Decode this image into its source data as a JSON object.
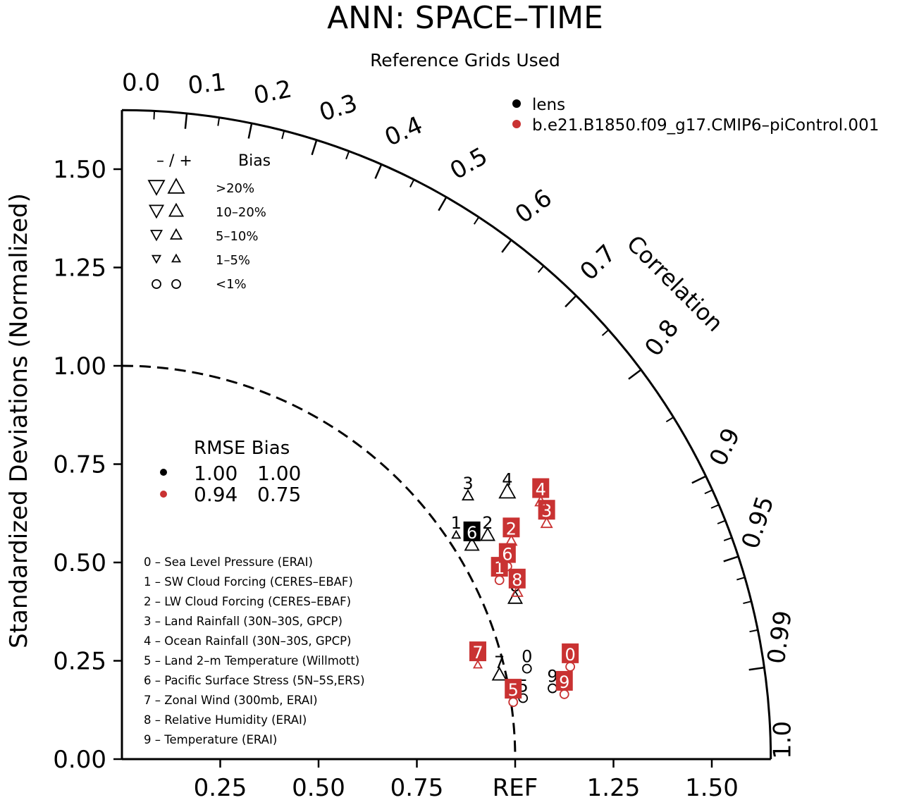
{
  "chart_data": {
    "type": "scatter",
    "subtype": "taylor-diagram",
    "title": "ANN: SPACE–TIME",
    "subtitle": "Reference Grids Used",
    "ylabel": "Standardized Deviations (Normalized)",
    "arc_label": "Correlation",
    "ref_label": "REF",
    "x_tick_labels": [
      "0.25",
      "0.50",
      "0.75",
      "REF",
      "1.25",
      "1.50"
    ],
    "x_tick_values": [
      0.25,
      0.5,
      0.75,
      1.0,
      1.25,
      1.5
    ],
    "y_tick_labels": [
      "0.00",
      "0.25",
      "0.50",
      "0.75",
      "1.00",
      "1.25",
      "1.50"
    ],
    "y_tick_values": [
      0,
      0.25,
      0.5,
      0.75,
      1.0,
      1.25,
      1.5
    ],
    "radius_max": 1.65,
    "correlation_labels": [
      {
        "value": 0.0,
        "text": "0.0"
      },
      {
        "value": 0.1,
        "text": "0.1"
      },
      {
        "value": 0.2,
        "text": "0.2"
      },
      {
        "value": 0.3,
        "text": "0.3"
      },
      {
        "value": 0.4,
        "text": "0.4"
      },
      {
        "value": 0.5,
        "text": "0.5"
      },
      {
        "value": 0.6,
        "text": "0.6"
      },
      {
        "value": 0.7,
        "text": "0.7"
      },
      {
        "value": 0.8,
        "text": "0.8"
      },
      {
        "value": 0.9,
        "text": "0.9"
      },
      {
        "value": 0.95,
        "text": "0.95"
      },
      {
        "value": 0.99,
        "text": "0.99"
      },
      {
        "value": 1.0,
        "text": "1.0"
      }
    ],
    "correlation_minor_ticks": [
      0.05,
      0.15,
      0.25,
      0.35,
      0.45,
      0.55,
      0.65,
      0.75,
      0.85,
      0.91,
      0.92,
      0.93,
      0.94,
      0.96,
      0.97,
      0.98
    ],
    "legend": [
      {
        "name": "lens",
        "color": "#000000"
      },
      {
        "name": "b.e21.B1850.f09_g17.CMIP6–piControl.001",
        "color": "#c93232"
      }
    ],
    "bias_key": {
      "header_sign": "– / +",
      "header_label": "Bias",
      "rows": [
        ">20%",
        "10–20%",
        "5–10%",
        "1–5%",
        "<1%"
      ]
    },
    "summary": {
      "header": "RMSE Bias",
      "rows": [
        {
          "color": "#000000",
          "rmse": "1.00",
          "bias": "1.00"
        },
        {
          "color": "#c93232",
          "rmse": "0.94",
          "bias": "0.75"
        }
      ]
    },
    "variables": [
      "0 – Sea Level Pressure (ERAI)",
      "1 – SW Cloud Forcing (CERES–EBAF)",
      "2 – LW Cloud Forcing (CERES–EBAF)",
      "3 – Land Rainfall (30N–30S, GPCP)",
      "4 – Ocean Rainfall (30N–30S, GPCP)",
      "5 – Land 2–m Temperature (Willmott)",
      "6 – Pacific Surface Stress (5N–5S,ERS)",
      "7 – Zonal Wind (300mb, ERAI)",
      "8 – Relative Humidity (ERAI)",
      "9 – Temperature (ERAI)"
    ],
    "series": [
      {
        "name": "lens",
        "color": "#000000",
        "points": [
          {
            "id": "0",
            "x": 1.03,
            "y": 0.23,
            "marker": "circle",
            "size": 1,
            "label_style": "plain"
          },
          {
            "id": "1",
            "x": 0.85,
            "y": 0.57,
            "marker": "tri-up",
            "size": 1,
            "label_style": "plain"
          },
          {
            "id": "2",
            "x": 0.93,
            "y": 0.57,
            "marker": "tri-up",
            "size": 3,
            "label_style": "plain"
          },
          {
            "id": "3",
            "x": 0.88,
            "y": 0.67,
            "marker": "tri-up",
            "size": 2,
            "label_style": "plain"
          },
          {
            "id": "4",
            "x": 0.98,
            "y": 0.68,
            "marker": "tri-up",
            "size": 4,
            "label_style": "plain"
          },
          {
            "id": "5",
            "x": 1.02,
            "y": 0.155,
            "marker": "circle",
            "size": 1,
            "label_style": "plain"
          },
          {
            "id": "6",
            "x": 0.89,
            "y": 0.545,
            "marker": "tri-up",
            "size": 3,
            "label_style": "boxed"
          },
          {
            "id": "7",
            "x": 0.96,
            "y": 0.215,
            "marker": "tri-up",
            "size": 3,
            "label_style": "plain"
          },
          {
            "id": "8",
            "x": 1.0,
            "y": 0.41,
            "marker": "tri-up",
            "size": 3,
            "label_style": "plain"
          },
          {
            "id": "9",
            "x": 1.095,
            "y": 0.18,
            "marker": "circle",
            "size": 1,
            "label_style": "plain"
          }
        ]
      },
      {
        "name": "b.e21.B1850.f09_g17.CMIP6–piControl.001",
        "color": "#c93232",
        "points": [
          {
            "id": "0",
            "x": 1.14,
            "y": 0.235,
            "marker": "circle",
            "size": 1,
            "label_style": "boxed"
          },
          {
            "id": "1",
            "x": 0.96,
            "y": 0.455,
            "marker": "circle",
            "size": 1,
            "label_style": "boxed"
          },
          {
            "id": "2",
            "x": 0.99,
            "y": 0.555,
            "marker": "tri-up",
            "size": 2,
            "label_style": "boxed"
          },
          {
            "id": "3",
            "x": 1.08,
            "y": 0.6,
            "marker": "tri-up",
            "size": 2,
            "label_style": "boxed"
          },
          {
            "id": "4",
            "x": 1.065,
            "y": 0.655,
            "marker": "tri-up",
            "size": 2,
            "label_style": "boxed"
          },
          {
            "id": "5",
            "x": 0.995,
            "y": 0.145,
            "marker": "circle",
            "size": 1,
            "label_style": "boxed"
          },
          {
            "id": "6",
            "x": 0.98,
            "y": 0.49,
            "marker": "circle",
            "size": 1,
            "label_style": "boxed"
          },
          {
            "id": "7",
            "x": 0.905,
            "y": 0.24,
            "marker": "tri-up",
            "size": 1,
            "label_style": "boxed"
          },
          {
            "id": "8",
            "x": 1.005,
            "y": 0.425,
            "marker": "tri-up",
            "size": 2,
            "label_style": "boxed"
          },
          {
            "id": "9",
            "x": 1.125,
            "y": 0.165,
            "marker": "circle",
            "size": 1,
            "label_style": "boxed"
          }
        ]
      }
    ]
  }
}
